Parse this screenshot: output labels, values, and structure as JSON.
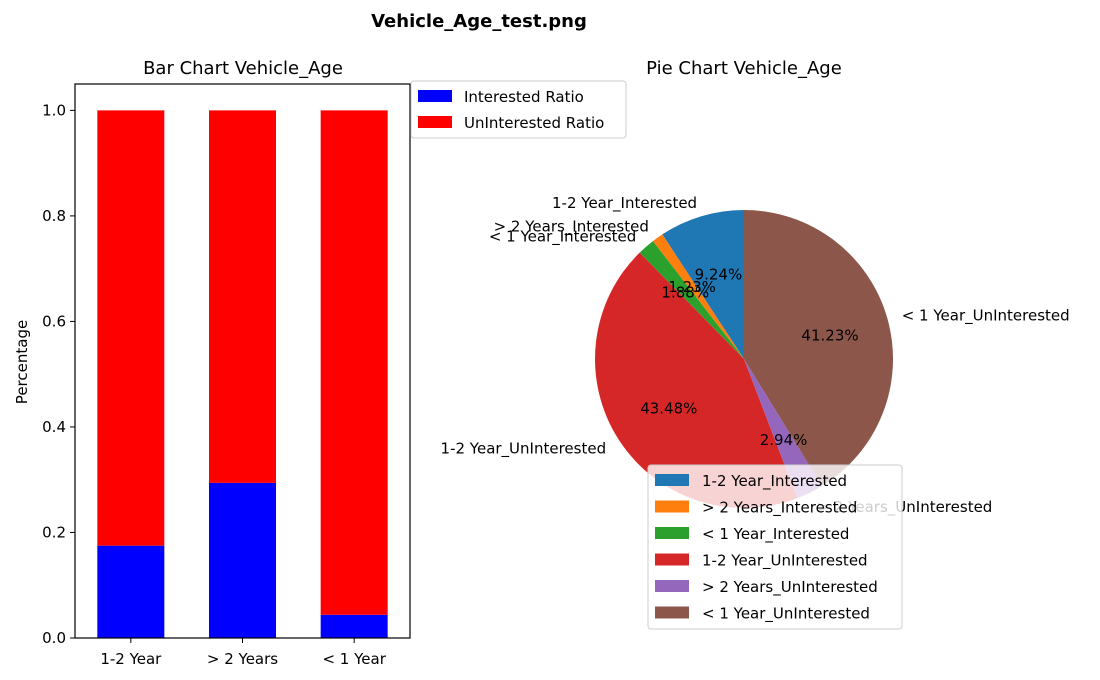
{
  "figure_title": "Vehicle_Age_test.png",
  "chart_data": [
    {
      "type": "bar",
      "stacked": true,
      "title": "Bar Chart Vehicle_Age",
      "xlabel": "",
      "ylabel": "Percentage",
      "categories": [
        "1-2 Year",
        "> 2 Years",
        "< 1 Year"
      ],
      "series": [
        {
          "name": "Interested Ratio",
          "color": "#0000ff",
          "values": [
            0.175,
            0.294,
            0.044
          ]
        },
        {
          "name": "UnInterested Ratio",
          "color": "#ff0000",
          "values": [
            0.825,
            0.706,
            0.956
          ]
        }
      ],
      "ylim": [
        0,
        1.05
      ],
      "yticks": [
        "0.0",
        "0.2",
        "0.4",
        "0.6",
        "0.8",
        "1.0"
      ],
      "legend_position": "upper-right-outside",
      "grid": false
    },
    {
      "type": "pie",
      "title": "Pie Chart Vehicle_Age",
      "slices": [
        {
          "label": "1-2 Year_Interested",
          "value": 9.24,
          "pct_text": "9.24%",
          "color": "#1f77b4"
        },
        {
          "label": "> 2 Years_Interested",
          "value": 1.23,
          "pct_text": "1.23%",
          "color": "#ff7f0e"
        },
        {
          "label": "< 1 Year_Interested",
          "value": 1.88,
          "pct_text": "1.88%",
          "color": "#2ca02c"
        },
        {
          "label": "1-2 Year_UnInterested",
          "value": 43.48,
          "pct_text": "43.48%",
          "color": "#d62728"
        },
        {
          "label": "> 2 Years_UnInterested",
          "value": 2.94,
          "pct_text": "2.94%",
          "color": "#9467bd"
        },
        {
          "label": "< 1 Year_UnInterested",
          "value": 41.23,
          "pct_text": "41.23%",
          "color": "#8c564b"
        }
      ],
      "legend_position": "lower-center"
    }
  ]
}
